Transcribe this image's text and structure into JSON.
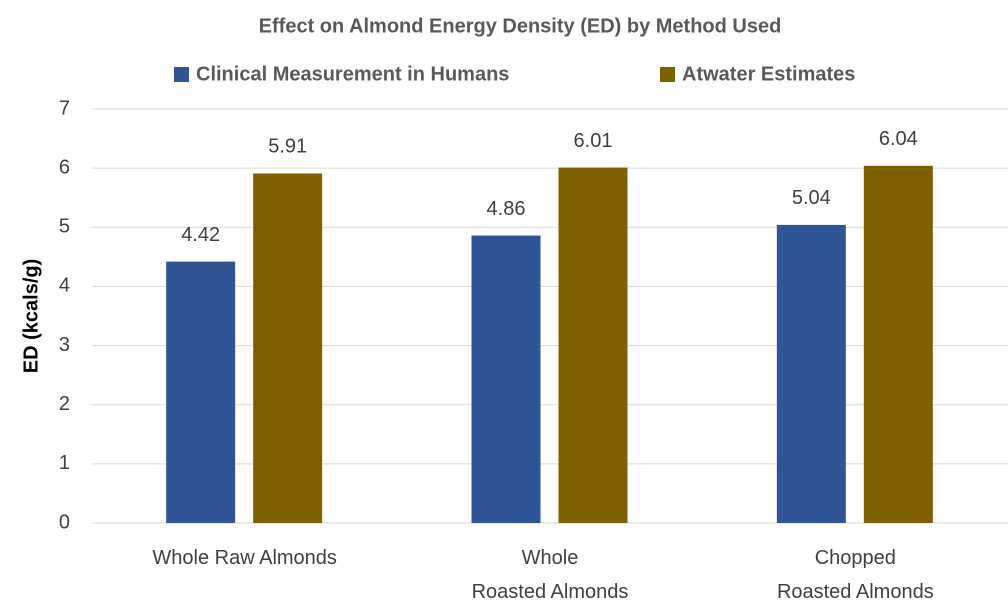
{
  "chart_data": {
    "type": "bar",
    "title": "Effect on Almond Energy Density (ED) by Method Used",
    "y_label": "ED (kcals/g)",
    "categories": [
      "Whole Raw Almonds",
      "Whole\nRoasted Almonds",
      "Chopped\nRoasted Almonds"
    ],
    "series": [
      {
        "name": "Clinical Measurement in Humans",
        "color": "#2f5597",
        "values": [
          4.42,
          4.86,
          5.04
        ]
      },
      {
        "name": "Atwater Estimates",
        "color": "#7f6000",
        "values": [
          5.91,
          6.01,
          6.04
        ]
      }
    ],
    "ylim": [
      0,
      7
    ],
    "yticks": [
      0,
      1,
      2,
      3,
      4,
      5,
      6,
      7
    ],
    "grid": true,
    "legend": "top"
  }
}
